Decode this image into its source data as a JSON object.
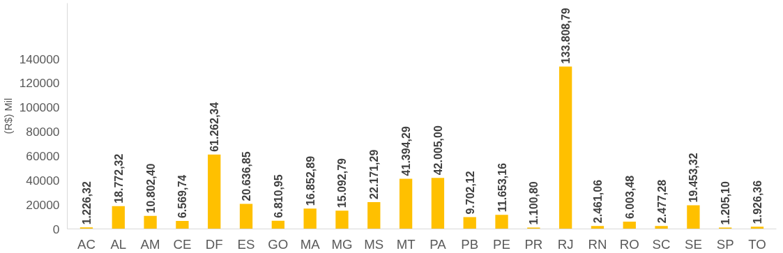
{
  "chart_data": {
    "type": "bar",
    "ylabel": "(R$) Mil",
    "categories": [
      "AC",
      "AL",
      "AM",
      "CE",
      "DF",
      "ES",
      "GO",
      "MA",
      "MG",
      "MS",
      "MT",
      "PA",
      "PB",
      "PE",
      "PR",
      "RJ",
      "RN",
      "RO",
      "SC",
      "SE",
      "SP",
      "TO"
    ],
    "values": [
      1226.32,
      18772.32,
      10802.4,
      6569.74,
      61262.34,
      20636.85,
      6810.95,
      16852.89,
      15092.79,
      22171.29,
      41394.29,
      42005.0,
      9702.12,
      11653.16,
      1100.8,
      133808.79,
      2461.06,
      6003.48,
      2477.28,
      19453.32,
      1205.1,
      1926.36
    ],
    "value_labels": [
      "1.226,32",
      "18.772,32",
      "10.802,40",
      "6.569,74",
      "61.262,34",
      "20.636,85",
      "6.810,95",
      "16.852,89",
      "15.092,79",
      "22.171,29",
      "41.394,29",
      "42.005,00",
      "9.702,12",
      "11.653,16",
      "1.100,80",
      "133.808,79",
      "2.461,06",
      "6.003,48",
      "2.477,28",
      "19.453,32",
      "1.205,10",
      "1.926,36"
    ],
    "color": "#ffc000",
    "ylim": [
      0,
      186000
    ],
    "yticks": [
      0,
      20000,
      40000,
      60000,
      80000,
      100000,
      120000,
      140000
    ],
    "grid": false
  }
}
